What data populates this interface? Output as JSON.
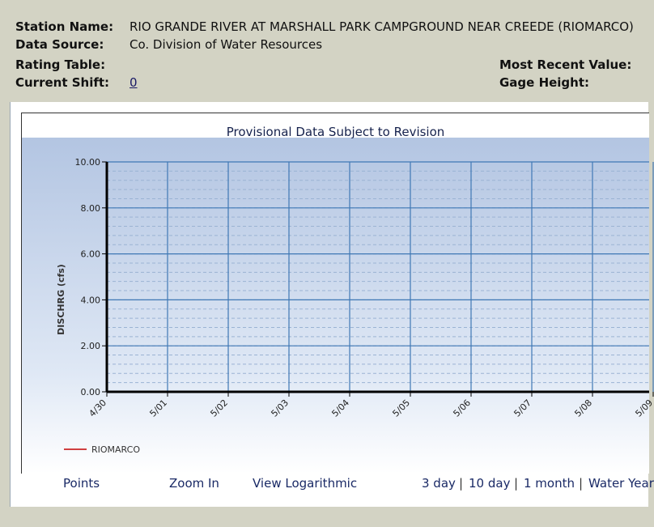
{
  "station": {
    "name_label": "Station Name:",
    "name_value": "RIO GRANDE RIVER AT MARSHALL PARK CAMPGROUND NEAR CREEDE (RIOMARCO)",
    "source_label": "Data Source:",
    "source_value": "Co. Division of Water Resources",
    "rating_label": "Rating Table:",
    "shift_label": "Current Shift:",
    "shift_value": "0",
    "recent_label": "Most Recent Value:",
    "gage_label": "Gage Height:"
  },
  "chart_data": {
    "type": "line",
    "title": "Provisional Data Subject to Revision",
    "ylabel": "DISCHRG (cfs)",
    "xlabel": "",
    "ylim": [
      0,
      10
    ],
    "y_ticks": [
      "0.00",
      "2.00",
      "4.00",
      "6.00",
      "8.00",
      "10.00"
    ],
    "x_ticks": [
      "4/30",
      "5/01",
      "5/02",
      "5/03",
      "5/04",
      "5/05",
      "5/06",
      "5/07",
      "5/08",
      "5/09"
    ],
    "grid": true,
    "legend": "bottom-left",
    "series": [
      {
        "name": "RIOMARCO",
        "color": "#d04040",
        "values": []
      }
    ]
  },
  "footer": {
    "points": "Points",
    "zoom_in": "Zoom In",
    "view_log": "View Logarithmic",
    "range_3day": "3 day",
    "range_10day": "10 day",
    "range_1month": "1 month",
    "range_water": "Water Year",
    "separator": "|"
  }
}
